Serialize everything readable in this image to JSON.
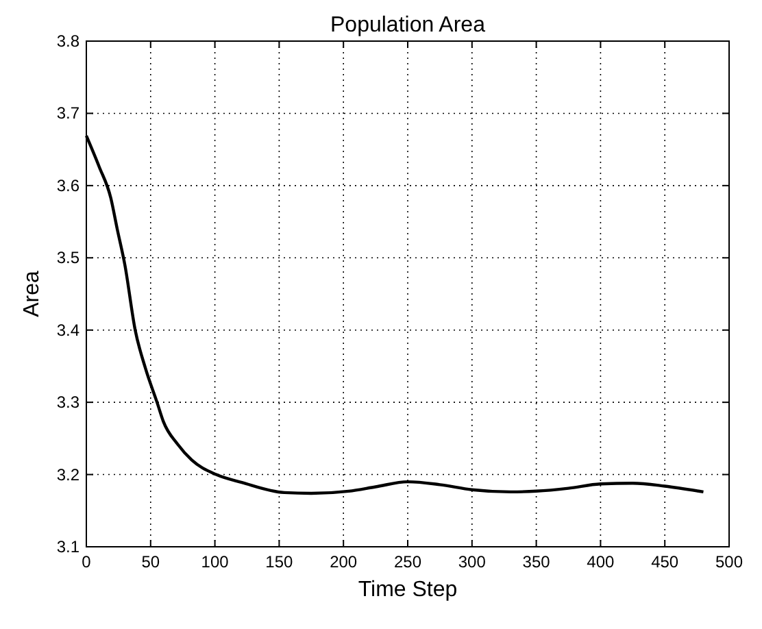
{
  "chart_data": {
    "type": "line",
    "title": "Population Area",
    "xlabel": "Time Step",
    "ylabel": "Area",
    "xlim": [
      0,
      500
    ],
    "xticks": [
      0,
      50,
      100,
      150,
      200,
      250,
      300,
      350,
      400,
      450,
      500
    ],
    "ylim": [
      3.1,
      3.8
    ],
    "yticks": [
      3.1,
      3.2,
      3.3,
      3.4,
      3.5,
      3.6,
      3.7,
      3.8
    ],
    "grid": true,
    "series": [
      {
        "color": "#000000",
        "x": [
          0,
          10,
          19,
          24,
          30,
          38,
          46,
          55,
          60,
          71,
          82,
          101,
          121,
          154,
          175,
          204,
          225,
          250,
          275,
          300,
          330,
          350,
          375,
          400,
          425,
          450,
          480
        ],
        "values": [
          3.669,
          3.626,
          3.583,
          3.54,
          3.49,
          3.4,
          3.347,
          3.3,
          3.273,
          3.242,
          3.22,
          3.2,
          3.189,
          3.175,
          3.174,
          3.177,
          3.183,
          3.19,
          3.186,
          3.179,
          3.176,
          3.177,
          3.181,
          3.187,
          3.188,
          3.184,
          3.176
        ]
      }
    ]
  }
}
